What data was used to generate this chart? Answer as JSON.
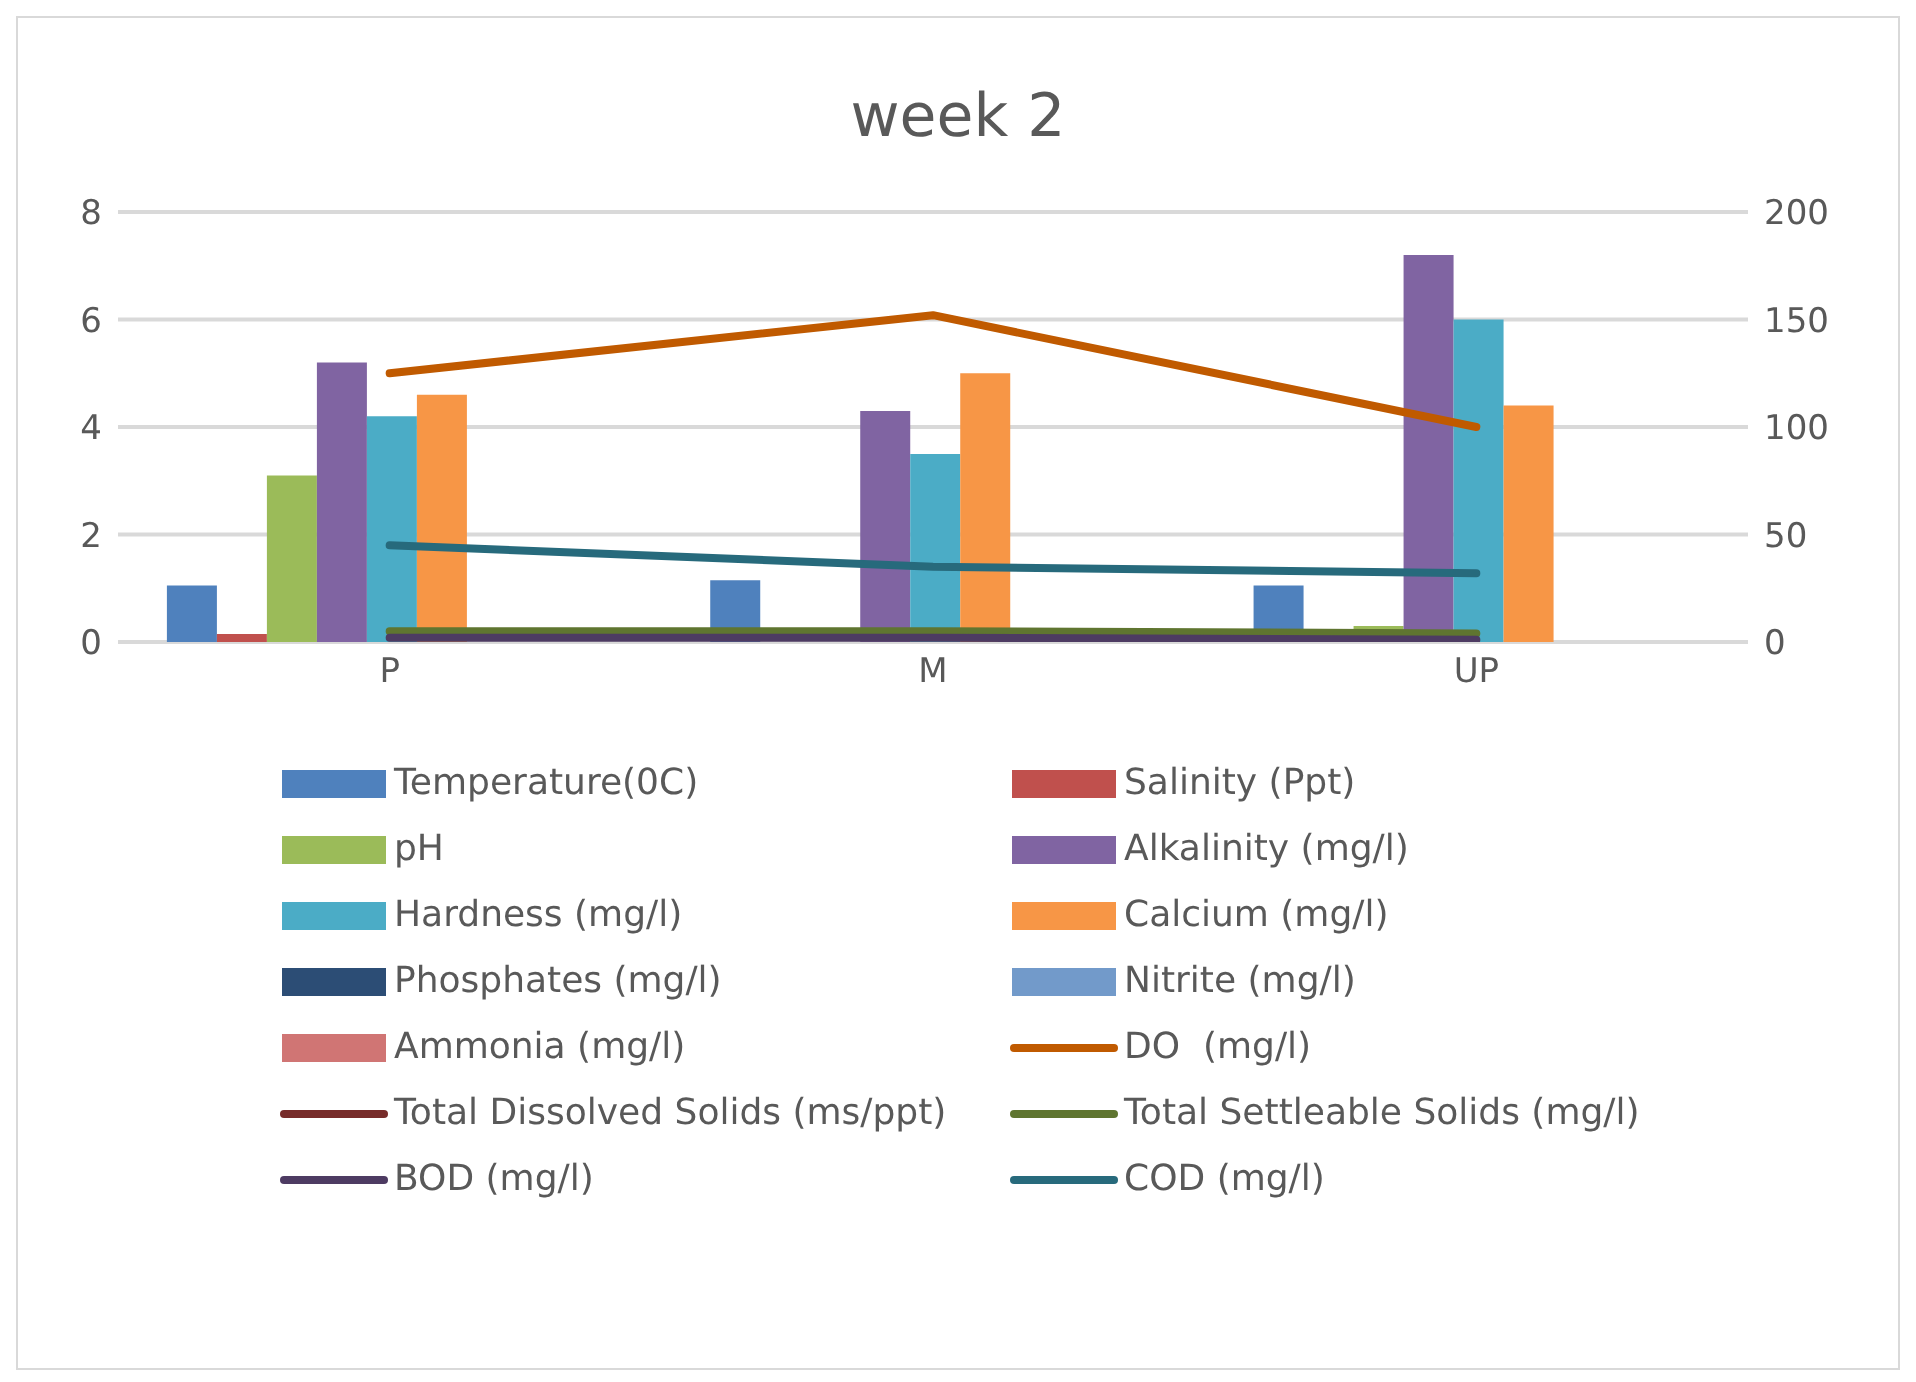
{
  "chart_data": {
    "type": "bar",
    "title": "week 2",
    "categories": [
      "P",
      "M",
      "UP"
    ],
    "ylim": [
      0,
      8
    ],
    "yticks": [
      0,
      2,
      4,
      6,
      8
    ],
    "y2lim": [
      0,
      200
    ],
    "y2ticks": [
      0,
      50,
      100,
      150,
      200
    ],
    "grid": "y",
    "legend": "bottom",
    "marker": "none",
    "series": [
      {
        "name": "Temperature(0C)",
        "color": "#4f81bd",
        "values": [
          1.05,
          1.15,
          1.05
        ]
      },
      {
        "name": "Salinity (Ppt)",
        "color": "#c0504d",
        "values": [
          0.15,
          0,
          0
        ]
      },
      {
        "name": "pH",
        "color": "#9bbb59",
        "values": [
          3.1,
          0,
          0.3
        ]
      },
      {
        "name": "Alkalinity (mg/l)",
        "color": "#8064a2",
        "values": [
          5.2,
          4.3,
          7.2
        ]
      },
      {
        "name": "Hardness (mg/l)",
        "color": "#4bacc6",
        "values": [
          4.2,
          3.5,
          6.0
        ]
      },
      {
        "name": "Calcium (mg/l)",
        "color": "#f79646",
        "values": [
          4.6,
          5.0,
          4.4
        ]
      },
      {
        "name": "Phosphates (mg/l)",
        "color": "#2c4d75",
        "values": [
          0,
          0,
          0
        ]
      },
      {
        "name": "Nitrite (mg/l)",
        "color": "#729aca",
        "values": [
          0,
          0,
          0
        ]
      },
      {
        "name": "Ammonia (mg/l)",
        "color": "#d07574",
        "values": [
          0,
          0,
          0
        ]
      },
      {
        "name": "DO  (mg/l)",
        "type": "line",
        "axis": "y2",
        "color": "#c05a00",
        "values": [
          125,
          152,
          100
        ]
      },
      {
        "name": "Total Dissolved Solids (ms/ppt)",
        "type": "line",
        "axis": "y2",
        "color": "#772c2a",
        "values": [
          null,
          null,
          null
        ]
      },
      {
        "name": "Total Settleable Solids (mg/l)",
        "type": "line",
        "axis": "y2",
        "color": "#5f7530",
        "values": [
          5,
          5,
          4
        ]
      },
      {
        "name": "BOD (mg/l)",
        "type": "line",
        "axis": "y2",
        "color": "#4d3b62",
        "values": [
          2,
          2,
          1
        ]
      },
      {
        "name": "COD (mg/l)",
        "type": "line",
        "axis": "y2",
        "color": "#276a7c",
        "values": [
          45,
          35,
          32
        ]
      }
    ]
  }
}
